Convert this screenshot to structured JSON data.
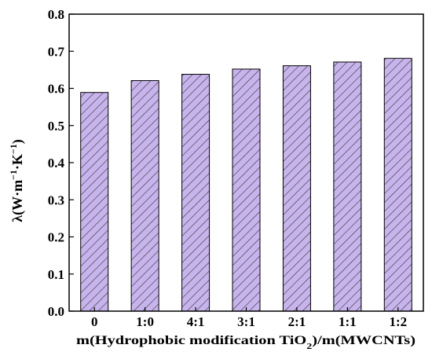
{
  "chart_data": {
    "type": "bar",
    "categories": [
      "0",
      "1:0",
      "4:1",
      "3:1",
      "2:1",
      "1:1",
      "1:2"
    ],
    "values": [
      0.589,
      0.621,
      0.638,
      0.652,
      0.661,
      0.671,
      0.681
    ],
    "ylim": [
      0,
      0.8
    ],
    "yticks": [
      "0.0",
      "0.1",
      "0.2",
      "0.3",
      "0.4",
      "0.5",
      "0.6",
      "0.7",
      "0.8"
    ],
    "ylabel": {
      "base": "λ(W·m",
      "sup1": "−1",
      "mid": "·K",
      "sup2": "−1",
      "end": ")"
    },
    "xlabel": {
      "part1": "m(Hydrophobic modification TiO",
      "sub": "2",
      "part2": ")/m(MWCNTs)"
    },
    "bar_fill": "#c8b4ec",
    "hatch_color": "#333333",
    "grid": false,
    "legend": "none"
  }
}
